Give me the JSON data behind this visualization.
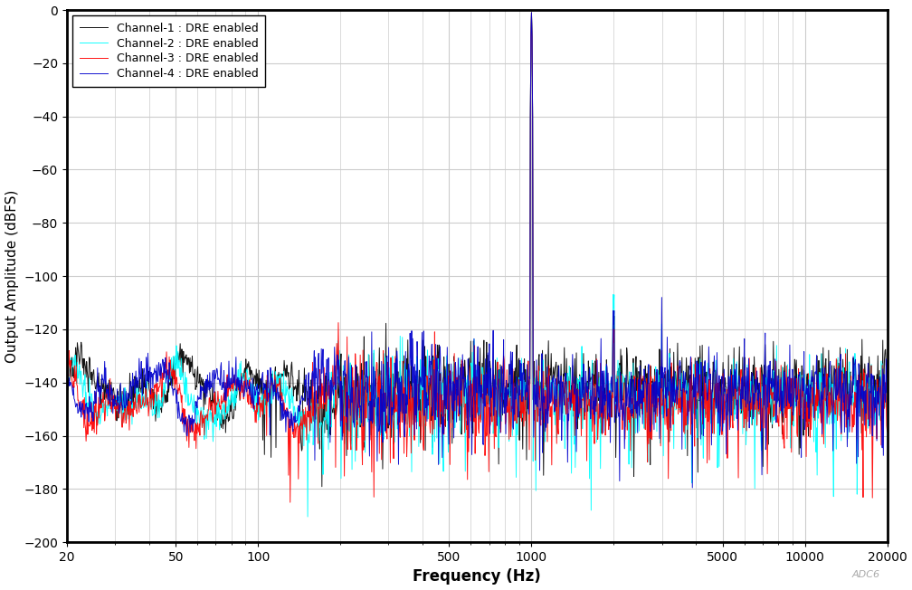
{
  "xlabel": "Frequency (Hz)",
  "ylabel": "Output Amplitude (dBFS)",
  "xlim": [
    20,
    20000
  ],
  "ylim": [
    -200,
    0
  ],
  "yticks": [
    0,
    -20,
    -40,
    -60,
    -80,
    -100,
    -120,
    -140,
    -160,
    -180,
    -200
  ],
  "xticks": [
    20,
    50,
    100,
    500,
    1000,
    5000,
    10000,
    20000
  ],
  "xticklabels": [
    "20",
    "50",
    "100",
    "500",
    "1000",
    "5000",
    "10000",
    "20000"
  ],
  "channels": [
    {
      "label": "Channel-1 : DRE enabled",
      "color": "#000000"
    },
    {
      "label": "Channel-2 : DRE enabled",
      "color": "#00FFFF"
    },
    {
      "label": "Channel-3 : DRE enabled",
      "color": "#FF0000"
    },
    {
      "label": "Channel-4 : DRE enabled",
      "color": "#0000CC"
    }
  ],
  "noise_floor": -144,
  "noise_std": 7,
  "signal_freq": 1000,
  "signal_level": -1,
  "seed": 42,
  "watermark": "ADC6",
  "background_color": "#FFFFFF",
  "grid_color": "#CCCCCC"
}
